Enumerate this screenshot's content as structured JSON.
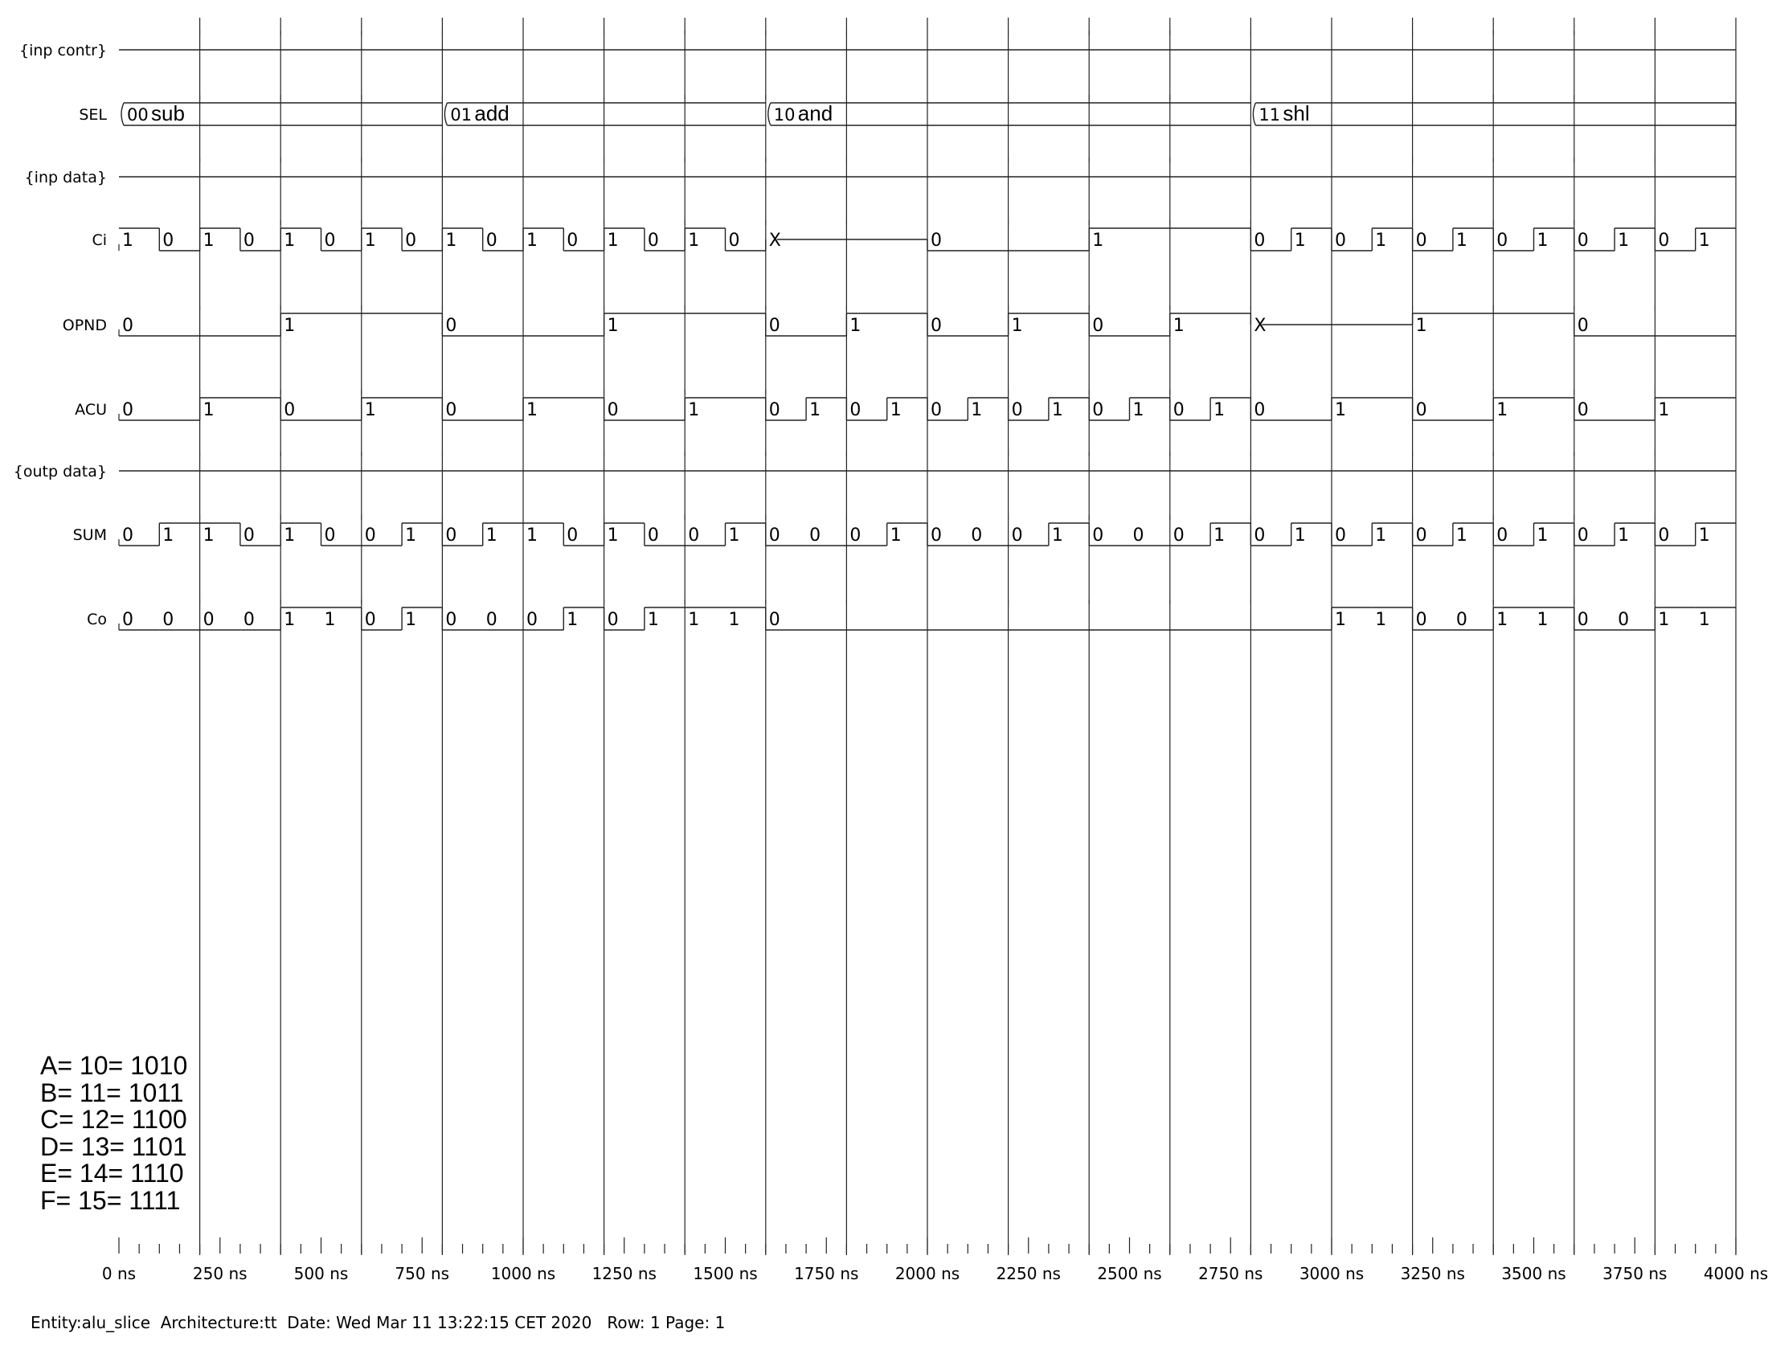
{
  "time_axis": {
    "unit": "ns",
    "max": 4000,
    "labels": [
      "0 ns",
      "250 ns",
      "500 ns",
      "750 ns",
      "1000 ns",
      "1250 ns",
      "1500 ns",
      "1750 ns",
      "2000 ns",
      "2250 ns",
      "2500 ns",
      "2750 ns",
      "3000 ns",
      "3250 ns",
      "3500 ns",
      "3750 ns",
      "4000 ns"
    ]
  },
  "signals": [
    {
      "name": "{inp contr}",
      "kind": "divider"
    },
    {
      "name": "SEL",
      "kind": "bus",
      "segments": [
        {
          "start": 0,
          "end": 800,
          "value": "00",
          "mnemonic": "sub"
        },
        {
          "start": 800,
          "end": 1600,
          "value": "01",
          "mnemonic": "add"
        },
        {
          "start": 1600,
          "end": 2800,
          "value": "10",
          "mnemonic": "and"
        },
        {
          "start": 2800,
          "end": 4000,
          "value": "11",
          "mnemonic": "shl"
        }
      ]
    },
    {
      "name": "{inp data}",
      "kind": "divider"
    },
    {
      "name": "Ci",
      "kind": "bit",
      "segments": [
        {
          "start": 0,
          "end": 100,
          "value": "1"
        },
        {
          "start": 100,
          "end": 200,
          "value": "0"
        },
        {
          "start": 200,
          "end": 300,
          "value": "1"
        },
        {
          "start": 300,
          "end": 400,
          "value": "0"
        },
        {
          "start": 400,
          "end": 500,
          "value": "1"
        },
        {
          "start": 500,
          "end": 600,
          "value": "0"
        },
        {
          "start": 600,
          "end": 700,
          "value": "1"
        },
        {
          "start": 700,
          "end": 800,
          "value": "0"
        },
        {
          "start": 800,
          "end": 900,
          "value": "1"
        },
        {
          "start": 900,
          "end": 1000,
          "value": "0"
        },
        {
          "start": 1000,
          "end": 1100,
          "value": "1"
        },
        {
          "start": 1100,
          "end": 1200,
          "value": "0"
        },
        {
          "start": 1200,
          "end": 1300,
          "value": "1"
        },
        {
          "start": 1300,
          "end": 1400,
          "value": "0"
        },
        {
          "start": 1400,
          "end": 1500,
          "value": "1"
        },
        {
          "start": 1500,
          "end": 1600,
          "value": "0"
        },
        {
          "start": 1600,
          "end": 2000,
          "value": "X"
        },
        {
          "start": 2000,
          "end": 2400,
          "value": "0"
        },
        {
          "start": 2400,
          "end": 2800,
          "value": "1"
        },
        {
          "start": 2800,
          "end": 2900,
          "value": "0"
        },
        {
          "start": 2900,
          "end": 3000,
          "value": "1"
        },
        {
          "start": 3000,
          "end": 3100,
          "value": "0"
        },
        {
          "start": 3100,
          "end": 3200,
          "value": "1"
        },
        {
          "start": 3200,
          "end": 3300,
          "value": "0"
        },
        {
          "start": 3300,
          "end": 3400,
          "value": "1"
        },
        {
          "start": 3400,
          "end": 3500,
          "value": "0"
        },
        {
          "start": 3500,
          "end": 3600,
          "value": "1"
        },
        {
          "start": 3600,
          "end": 3700,
          "value": "0"
        },
        {
          "start": 3700,
          "end": 3800,
          "value": "1"
        },
        {
          "start": 3800,
          "end": 3900,
          "value": "0"
        },
        {
          "start": 3900,
          "end": 4000,
          "value": "1"
        }
      ]
    },
    {
      "name": "OPND",
      "kind": "bit",
      "segments": [
        {
          "start": 0,
          "end": 400,
          "value": "0"
        },
        {
          "start": 400,
          "end": 800,
          "value": "1"
        },
        {
          "start": 800,
          "end": 1200,
          "value": "0"
        },
        {
          "start": 1200,
          "end": 1600,
          "value": "1"
        },
        {
          "start": 1600,
          "end": 1800,
          "value": "0"
        },
        {
          "start": 1800,
          "end": 2000,
          "value": "1"
        },
        {
          "start": 2000,
          "end": 2200,
          "value": "0"
        },
        {
          "start": 2200,
          "end": 2400,
          "value": "1"
        },
        {
          "start": 2400,
          "end": 2600,
          "value": "0"
        },
        {
          "start": 2600,
          "end": 2800,
          "value": "1"
        },
        {
          "start": 2800,
          "end": 3200,
          "value": "X"
        },
        {
          "start": 3200,
          "end": 3600,
          "value": "1"
        },
        {
          "start": 3600,
          "end": 4000,
          "value": "0"
        }
      ]
    },
    {
      "name": "ACU",
      "kind": "bit",
      "segments": [
        {
          "start": 0,
          "end": 200,
          "value": "0"
        },
        {
          "start": 200,
          "end": 400,
          "value": "1"
        },
        {
          "start": 400,
          "end": 600,
          "value": "0"
        },
        {
          "start": 600,
          "end": 800,
          "value": "1"
        },
        {
          "start": 800,
          "end": 1000,
          "value": "0"
        },
        {
          "start": 1000,
          "end": 1200,
          "value": "1"
        },
        {
          "start": 1200,
          "end": 1400,
          "value": "0"
        },
        {
          "start": 1400,
          "end": 1600,
          "value": "1"
        },
        {
          "start": 1600,
          "end": 1700,
          "value": "0"
        },
        {
          "start": 1700,
          "end": 1800,
          "value": "1"
        },
        {
          "start": 1800,
          "end": 1900,
          "value": "0"
        },
        {
          "start": 1900,
          "end": 2000,
          "value": "1"
        },
        {
          "start": 2000,
          "end": 2100,
          "value": "0"
        },
        {
          "start": 2100,
          "end": 2200,
          "value": "1"
        },
        {
          "start": 2200,
          "end": 2300,
          "value": "0"
        },
        {
          "start": 2300,
          "end": 2400,
          "value": "1"
        },
        {
          "start": 2400,
          "end": 2500,
          "value": "0"
        },
        {
          "start": 2500,
          "end": 2600,
          "value": "1"
        },
        {
          "start": 2600,
          "end": 2700,
          "value": "0"
        },
        {
          "start": 2700,
          "end": 2800,
          "value": "1"
        },
        {
          "start": 2800,
          "end": 3000,
          "value": "0"
        },
        {
          "start": 3000,
          "end": 3200,
          "value": "1"
        },
        {
          "start": 3200,
          "end": 3400,
          "value": "0"
        },
        {
          "start": 3400,
          "end": 3600,
          "value": "1"
        },
        {
          "start": 3600,
          "end": 3800,
          "value": "0"
        },
        {
          "start": 3800,
          "end": 4000,
          "value": "1"
        }
      ]
    },
    {
      "name": "{outp data}",
      "kind": "divider"
    },
    {
      "name": "SUM",
      "kind": "bit",
      "segments": [
        {
          "start": 0,
          "end": 100,
          "value": "0"
        },
        {
          "start": 100,
          "end": 200,
          "value": "1"
        },
        {
          "start": 200,
          "end": 300,
          "value": "1"
        },
        {
          "start": 300,
          "end": 400,
          "value": "0"
        },
        {
          "start": 400,
          "end": 500,
          "value": "1"
        },
        {
          "start": 500,
          "end": 600,
          "value": "0"
        },
        {
          "start": 600,
          "end": 700,
          "value": "0"
        },
        {
          "start": 700,
          "end": 800,
          "value": "1"
        },
        {
          "start": 800,
          "end": 900,
          "value": "0"
        },
        {
          "start": 900,
          "end": 1000,
          "value": "1"
        },
        {
          "start": 1000,
          "end": 1100,
          "value": "1"
        },
        {
          "start": 1100,
          "end": 1200,
          "value": "0"
        },
        {
          "start": 1200,
          "end": 1300,
          "value": "1"
        },
        {
          "start": 1300,
          "end": 1400,
          "value": "0"
        },
        {
          "start": 1400,
          "end": 1500,
          "value": "0"
        },
        {
          "start": 1500,
          "end": 1600,
          "value": "1"
        },
        {
          "start": 1600,
          "end": 1700,
          "value": "0"
        },
        {
          "start": 1700,
          "end": 1800,
          "value": "0"
        },
        {
          "start": 1800,
          "end": 1900,
          "value": "0"
        },
        {
          "start": 1900,
          "end": 2000,
          "value": "1"
        },
        {
          "start": 2000,
          "end": 2100,
          "value": "0"
        },
        {
          "start": 2100,
          "end": 2200,
          "value": "0"
        },
        {
          "start": 2200,
          "end": 2300,
          "value": "0"
        },
        {
          "start": 2300,
          "end": 2400,
          "value": "1"
        },
        {
          "start": 2400,
          "end": 2500,
          "value": "0"
        },
        {
          "start": 2500,
          "end": 2600,
          "value": "0"
        },
        {
          "start": 2600,
          "end": 2700,
          "value": "0"
        },
        {
          "start": 2700,
          "end": 2800,
          "value": "1"
        },
        {
          "start": 2800,
          "end": 2900,
          "value": "0"
        },
        {
          "start": 2900,
          "end": 3000,
          "value": "1"
        },
        {
          "start": 3000,
          "end": 3100,
          "value": "0"
        },
        {
          "start": 3100,
          "end": 3200,
          "value": "1"
        },
        {
          "start": 3200,
          "end": 3300,
          "value": "0"
        },
        {
          "start": 3300,
          "end": 3400,
          "value": "1"
        },
        {
          "start": 3400,
          "end": 3500,
          "value": "0"
        },
        {
          "start": 3500,
          "end": 3600,
          "value": "1"
        },
        {
          "start": 3600,
          "end": 3700,
          "value": "0"
        },
        {
          "start": 3700,
          "end": 3800,
          "value": "1"
        },
        {
          "start": 3800,
          "end": 3900,
          "value": "0"
        },
        {
          "start": 3900,
          "end": 4000,
          "value": "1"
        }
      ]
    },
    {
      "name": "Co",
      "kind": "bit",
      "segments": [
        {
          "start": 0,
          "end": 100,
          "value": "0"
        },
        {
          "start": 100,
          "end": 200,
          "value": "0"
        },
        {
          "start": 200,
          "end": 300,
          "value": "0"
        },
        {
          "start": 300,
          "end": 400,
          "value": "0"
        },
        {
          "start": 400,
          "end": 500,
          "value": "1"
        },
        {
          "start": 500,
          "end": 600,
          "value": "1"
        },
        {
          "start": 600,
          "end": 700,
          "value": "0"
        },
        {
          "start": 700,
          "end": 800,
          "value": "1"
        },
        {
          "start": 800,
          "end": 900,
          "value": "0"
        },
        {
          "start": 900,
          "end": 1000,
          "value": "0"
        },
        {
          "start": 1000,
          "end": 1100,
          "value": "0"
        },
        {
          "start": 1100,
          "end": 1200,
          "value": "1"
        },
        {
          "start": 1200,
          "end": 1300,
          "value": "0"
        },
        {
          "start": 1300,
          "end": 1400,
          "value": "1"
        },
        {
          "start": 1400,
          "end": 1500,
          "value": "1"
        },
        {
          "start": 1500,
          "end": 1600,
          "value": "1"
        },
        {
          "start": 1600,
          "end": 3000,
          "value": "0"
        },
        {
          "start": 3000,
          "end": 3100,
          "value": "1"
        },
        {
          "start": 3100,
          "end": 3200,
          "value": "1"
        },
        {
          "start": 3200,
          "end": 3300,
          "value": "0"
        },
        {
          "start": 3300,
          "end": 3400,
          "value": "0"
        },
        {
          "start": 3400,
          "end": 3500,
          "value": "1"
        },
        {
          "start": 3500,
          "end": 3600,
          "value": "1"
        },
        {
          "start": 3600,
          "end": 3700,
          "value": "0"
        },
        {
          "start": 3700,
          "end": 3800,
          "value": "0"
        },
        {
          "start": 3800,
          "end": 3900,
          "value": "1"
        },
        {
          "start": 3900,
          "end": 4000,
          "value": "1"
        }
      ]
    }
  ],
  "notes": [
    "A= 10= 1010",
    "B= 11= 1011",
    "C= 12= 1100",
    "D= 13= 1101",
    "E= 14= 1110",
    "F= 15= 1111"
  ],
  "footer": "Entity:alu_slice  Architecture:tt  Date: Wed Mar 11 13:22:15 CET 2020   Row: 1 Page: 1"
}
